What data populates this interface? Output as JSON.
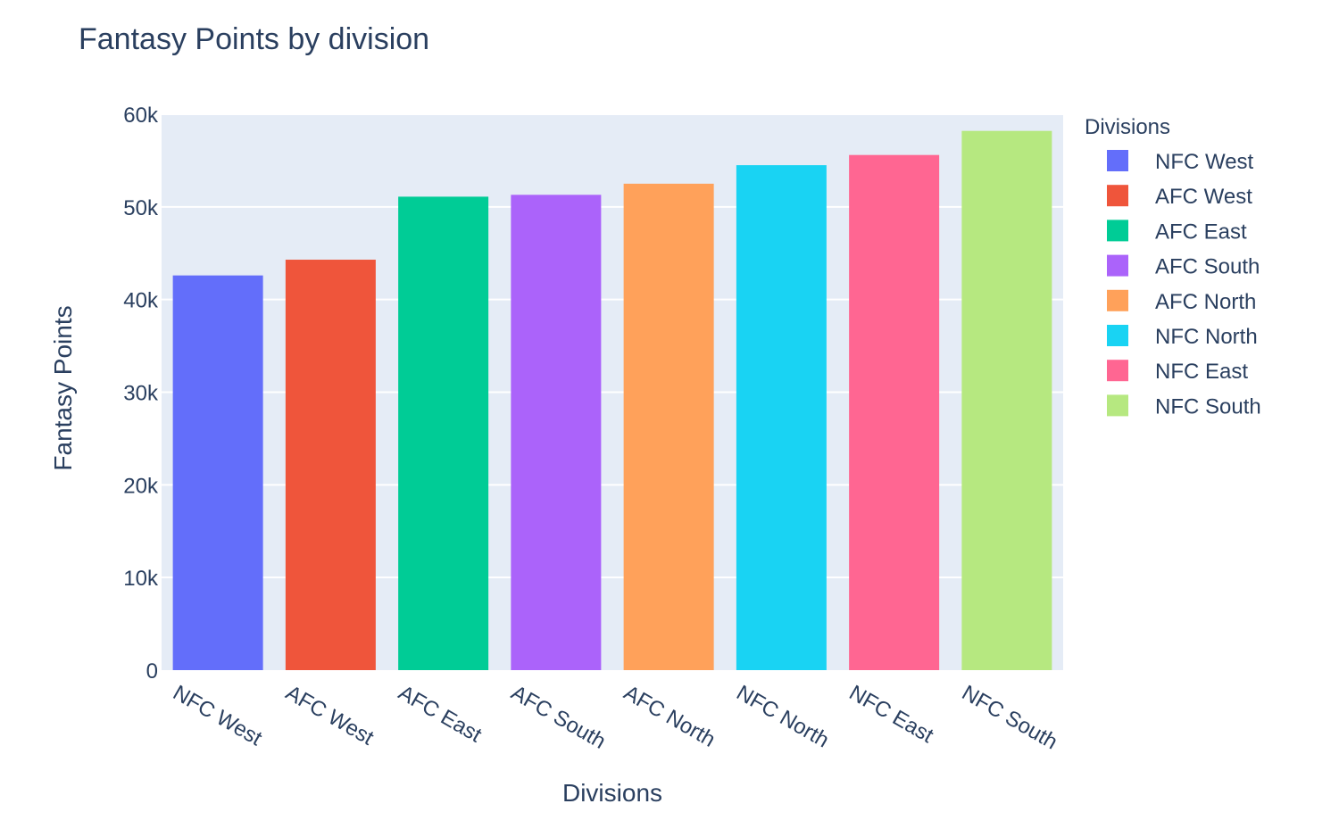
{
  "chart_data": {
    "type": "bar",
    "title": "Fantasy Points by division",
    "xlabel": "Divisions",
    "ylabel": "Fantasy Points",
    "ylim": [
      0,
      60000
    ],
    "yticks": [
      0,
      10000,
      20000,
      30000,
      40000,
      50000,
      60000
    ],
    "ytick_labels": [
      "0",
      "10k",
      "20k",
      "30k",
      "40k",
      "50k",
      "60k"
    ],
    "grid": true,
    "legend": {
      "title": "Divisions",
      "placement": "right"
    },
    "categories": [
      "NFC West",
      "AFC West",
      "AFC East",
      "AFC South",
      "AFC North",
      "NFC North",
      "NFC East",
      "NFC South"
    ],
    "values": [
      42600,
      44300,
      51100,
      51300,
      52500,
      54500,
      55600,
      58200
    ],
    "colors": [
      "#636efa",
      "#EF553B",
      "#00cc96",
      "#ab63fa",
      "#FFA15A",
      "#19d3f3",
      "#FF6692",
      "#B6E880"
    ],
    "plot_background": "#E5ECF6",
    "gridline_color": "#ffffff"
  }
}
